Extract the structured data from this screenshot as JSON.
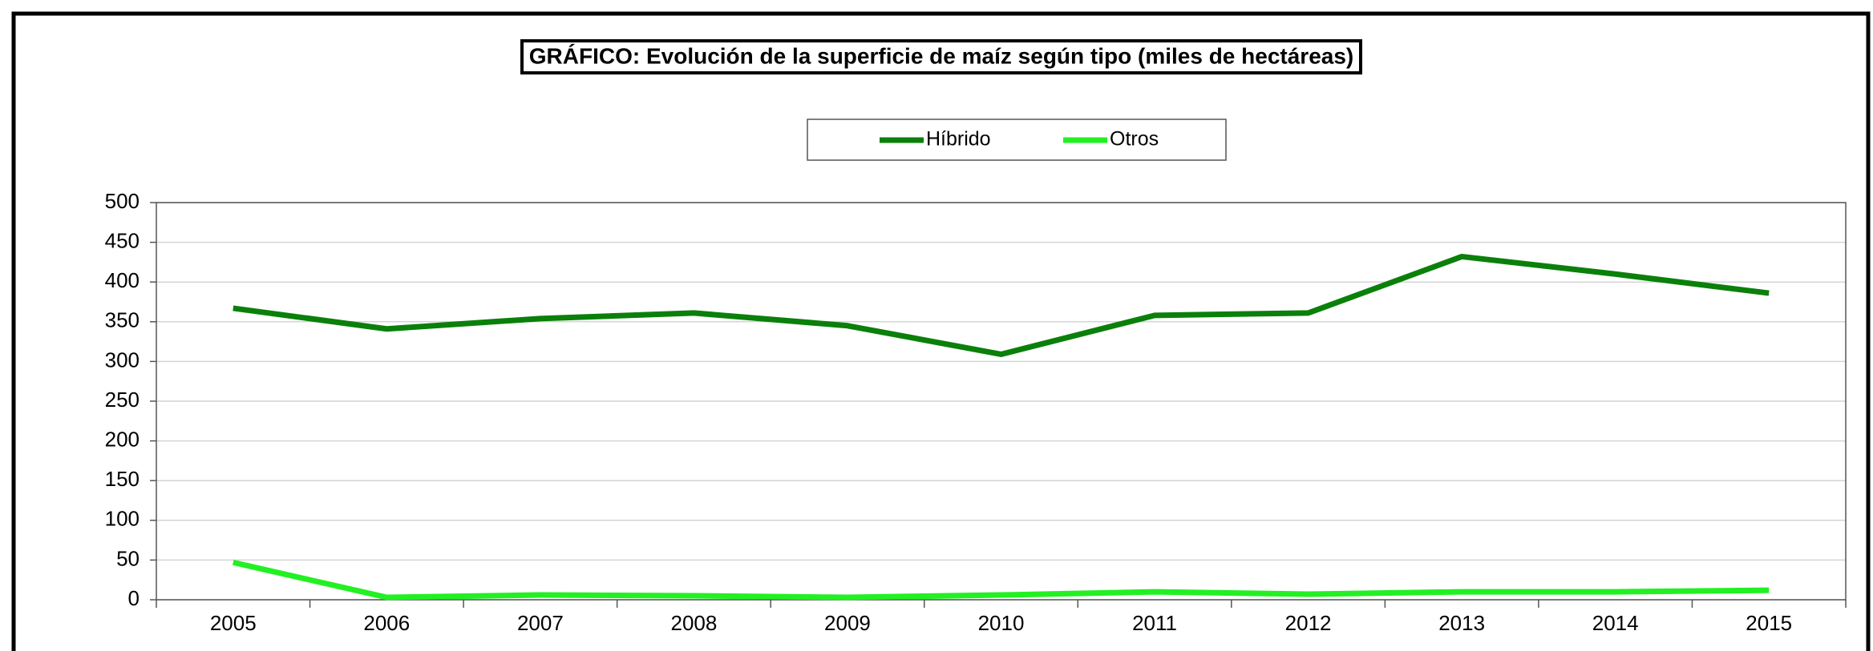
{
  "chart_data": {
    "type": "line",
    "title": "GRÁFICO: Evolución de la superficie de maíz según tipo (miles de hectáreas)",
    "categories": [
      "2005",
      "2006",
      "2007",
      "2008",
      "2009",
      "2010",
      "2011",
      "2012",
      "2013",
      "2014",
      "2015"
    ],
    "series": [
      {
        "name": "Híbrido",
        "color": "#0a800a",
        "values": [
          367,
          341,
          354,
          361,
          345,
          309,
          358,
          361,
          432,
          410,
          386
        ]
      },
      {
        "name": "Otros",
        "color": "#22f022",
        "values": [
          47,
          3,
          6,
          5,
          3,
          6,
          10,
          7,
          10,
          10,
          12
        ]
      }
    ],
    "ylim": [
      0,
      500
    ],
    "yticks": [
      0,
      50,
      100,
      150,
      200,
      250,
      300,
      350,
      400,
      450,
      500
    ],
    "grid": true,
    "legend": "top"
  }
}
